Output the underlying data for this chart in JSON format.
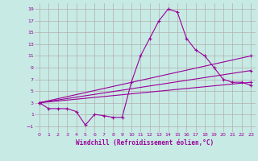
{
  "xlabel": "Windchill (Refroidissement éolien,°C)",
  "bg_color": "#c8eae4",
  "grid_color": "#b0b0b0",
  "line_color": "#990099",
  "ylim": [
    -2,
    20
  ],
  "xlim": [
    -0.5,
    23.5
  ],
  "yticks": [
    -1,
    1,
    3,
    5,
    7,
    9,
    11,
    13,
    15,
    17,
    19
  ],
  "xticks": [
    0,
    1,
    2,
    3,
    4,
    5,
    6,
    7,
    8,
    9,
    10,
    11,
    12,
    13,
    14,
    15,
    16,
    17,
    18,
    19,
    20,
    21,
    22,
    23
  ],
  "series1_x": [
    0,
    1,
    2,
    3,
    4,
    5,
    6,
    7,
    8,
    9,
    10,
    11,
    12,
    13,
    14,
    15,
    16,
    17,
    18,
    19,
    20,
    21,
    22,
    23
  ],
  "series1_y": [
    3.0,
    2.0,
    2.0,
    2.0,
    1.5,
    -0.8,
    1.0,
    0.8,
    0.5,
    0.5,
    6.5,
    11.0,
    14.0,
    17.0,
    19.0,
    18.5,
    14.0,
    12.0,
    11.0,
    9.0,
    7.0,
    6.5,
    6.5,
    6.0
  ],
  "series2_x": [
    0,
    23
  ],
  "series2_y": [
    3.0,
    11.0
  ],
  "series3_x": [
    0,
    23
  ],
  "series3_y": [
    3.0,
    8.5
  ],
  "series4_x": [
    0,
    23
  ],
  "series4_y": [
    3.0,
    6.5
  ]
}
